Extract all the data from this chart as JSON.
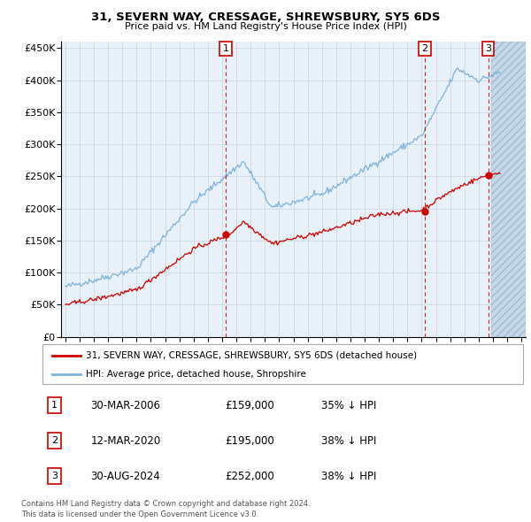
{
  "title": "31, SEVERN WAY, CRESSAGE, SHREWSBURY, SY5 6DS",
  "subtitle": "Price paid vs. HM Land Registry's House Price Index (HPI)",
  "legend_line1": "31, SEVERN WAY, CRESSAGE, SHREWSBURY, SY5 6DS (detached house)",
  "legend_line2": "HPI: Average price, detached house, Shropshire",
  "footer1": "Contains HM Land Registry data © Crown copyright and database right 2024.",
  "footer2": "This data is licensed under the Open Government Licence v3.0.",
  "sale_markers": [
    {
      "num": 1,
      "date": "30-MAR-2006",
      "price": "£159,000",
      "pct": "35% ↓ HPI",
      "x_year": 2006.25,
      "y_price": 159000
    },
    {
      "num": 2,
      "date": "12-MAR-2020",
      "price": "£195,000",
      "pct": "38% ↓ HPI",
      "x_year": 2020.2,
      "y_price": 195000
    },
    {
      "num": 3,
      "date": "30-AUG-2024",
      "price": "£252,000",
      "pct": "38% ↓ HPI",
      "x_year": 2024.67,
      "y_price": 252000
    }
  ],
  "red_line_color": "#cc0000",
  "blue_line_color": "#7fb3d9",
  "hatch_color": "#c5d8ea",
  "plot_bg": "#e8f0f8",
  "grid_color": "#c8d4e0",
  "ylim": [
    0,
    460000
  ],
  "xlim_start": 1994.7,
  "xlim_end": 2027.3,
  "hatch_start": 2024.9
}
